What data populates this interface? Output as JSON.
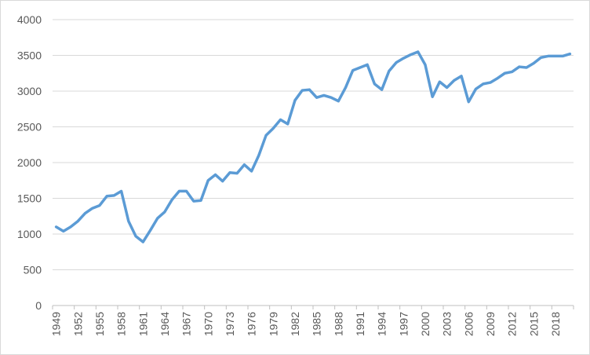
{
  "chart_data": {
    "type": "line",
    "title": "",
    "xlabel": "",
    "ylabel": "",
    "ylim": [
      0,
      4000
    ],
    "yticks": [
      0,
      500,
      1000,
      1500,
      2000,
      2500,
      3000,
      3500,
      4000
    ],
    "xlim": [
      1949,
      2020
    ],
    "xticks": [
      1949,
      1952,
      1955,
      1958,
      1961,
      1964,
      1967,
      1970,
      1973,
      1976,
      1979,
      1982,
      1985,
      1988,
      1991,
      1994,
      1997,
      2000,
      2003,
      2006,
      2009,
      2012,
      2015,
      2018
    ],
    "grid": "horizontal",
    "legend": "none",
    "colors": {
      "line": "#5b9bd5",
      "grid": "#d9d9d9",
      "axis": "#bfbfbf",
      "text": "#595959"
    },
    "x": [
      1949,
      1950,
      1951,
      1952,
      1953,
      1954,
      1955,
      1956,
      1957,
      1958,
      1959,
      1960,
      1961,
      1962,
      1963,
      1964,
      1965,
      1966,
      1967,
      1968,
      1969,
      1970,
      1971,
      1972,
      1973,
      1974,
      1975,
      1976,
      1977,
      1978,
      1979,
      1980,
      1981,
      1982,
      1983,
      1984,
      1985,
      1986,
      1987,
      1988,
      1989,
      1990,
      1991,
      1992,
      1993,
      1994,
      1995,
      1996,
      1997,
      1998,
      1999,
      2000,
      2001,
      2002,
      2003,
      2004,
      2005,
      2006,
      2007,
      2008,
      2009,
      2010,
      2011,
      2012,
      2013,
      2014,
      2015,
      2016,
      2017,
      2018,
      2019,
      2020
    ],
    "series": [
      {
        "values": [
          1100,
          1040,
          1100,
          1180,
          1290,
          1360,
          1400,
          1530,
          1540,
          1600,
          1180,
          970,
          890,
          1050,
          1220,
          1310,
          1480,
          1600,
          1600,
          1460,
          1470,
          1750,
          1830,
          1740,
          1860,
          1850,
          1970,
          1880,
          2100,
          2380,
          2480,
          2600,
          2540,
          2870,
          3010,
          3020,
          2910,
          2940,
          2910,
          2860,
          3050,
          3290,
          3330,
          3370,
          3100,
          3020,
          3280,
          3400,
          3460,
          3510,
          3550,
          3370,
          2920,
          3130,
          3050,
          3150,
          3210,
          2850,
          3030,
          3100,
          3120,
          3180,
          3250,
          3270,
          3340,
          3330,
          3390,
          3470,
          3490,
          3490,
          3490,
          3520
        ]
      }
    ]
  }
}
